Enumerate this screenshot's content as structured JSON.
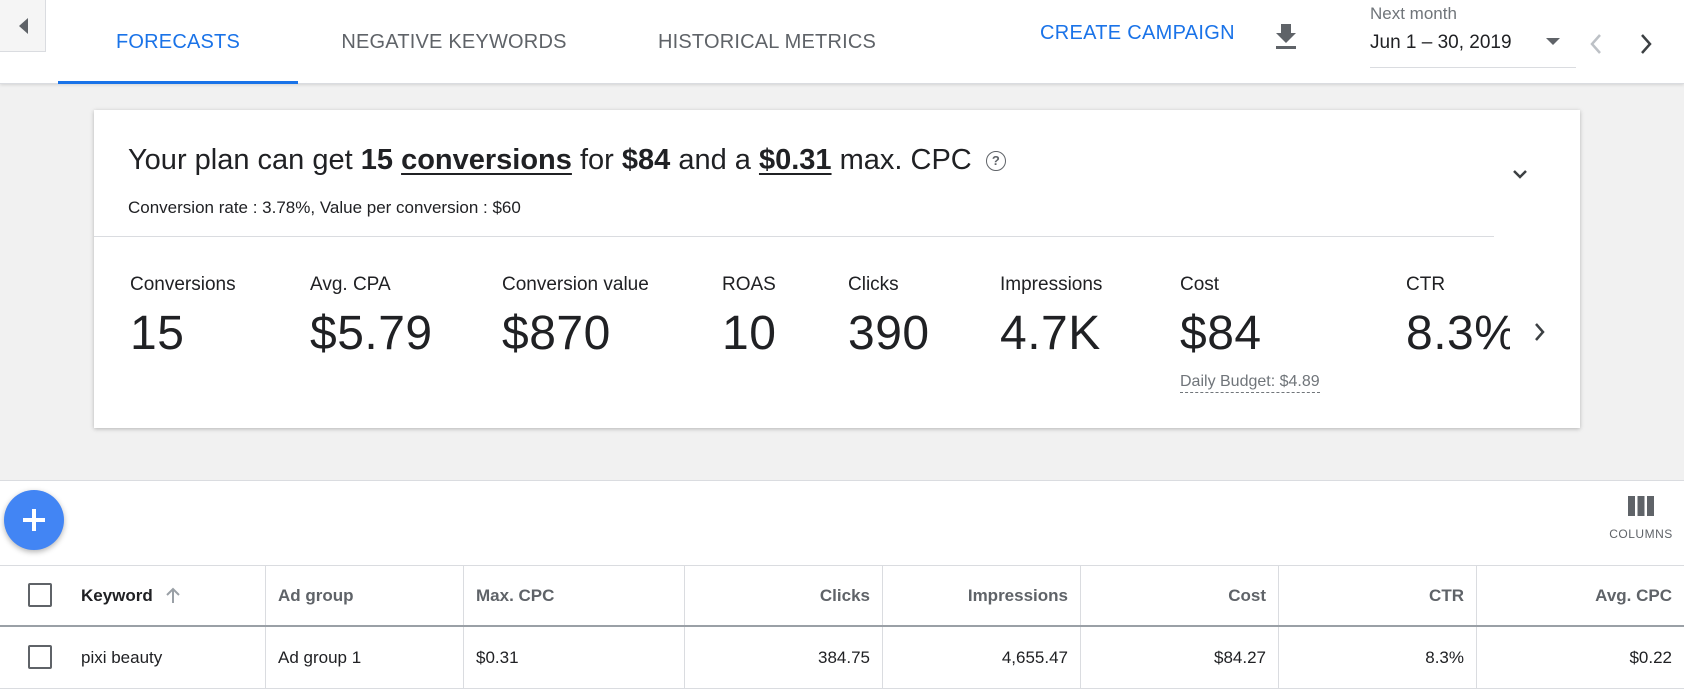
{
  "header": {
    "tabs": [
      {
        "label": "FORECASTS",
        "active": true
      },
      {
        "label": "NEGATIVE KEYWORDS",
        "active": false
      },
      {
        "label": "HISTORICAL METRICS",
        "active": false
      }
    ],
    "create_campaign": "CREATE CAMPAIGN",
    "date_range_label": "Next month",
    "date_range_value": "Jun 1 – 30, 2019"
  },
  "summary": {
    "prefix": "Your plan can get",
    "conversions_count": "15",
    "conversions_word": "conversions",
    "for_word": "for",
    "cost": "$84",
    "and_word": "and a",
    "max_cpc": "$0.31",
    "suffix": "max. CPC",
    "help_glyph": "?",
    "detail": "Conversion rate : 3.78%, Value per conversion : $60"
  },
  "metrics": [
    {
      "label": "Conversions",
      "value": "15"
    },
    {
      "label": "Avg. CPA",
      "value": "$5.79"
    },
    {
      "label": "Conversion value",
      "value": "$870"
    },
    {
      "label": "ROAS",
      "value": "10"
    },
    {
      "label": "Clicks",
      "value": "390"
    },
    {
      "label": "Impressions",
      "value": "4.7K"
    },
    {
      "label": "Cost",
      "value": "$84"
    },
    {
      "label": "CTR",
      "value": "8.3%"
    }
  ],
  "daily_budget": "Daily Budget: $4.89",
  "table": {
    "columns_label": "COLUMNS",
    "headers": [
      "Keyword",
      "Ad group",
      "Max. CPC",
      "Clicks",
      "Impressions",
      "Cost",
      "CTR",
      "Avg. CPC"
    ],
    "rows": [
      [
        "pixi beauty",
        "Ad group 1",
        "$0.31",
        "384.75",
        "4,655.47",
        "$84.27",
        "8.3%",
        "$0.22"
      ]
    ]
  },
  "colors": {
    "accent": "#1a73e8",
    "fab": "#4285f4"
  }
}
